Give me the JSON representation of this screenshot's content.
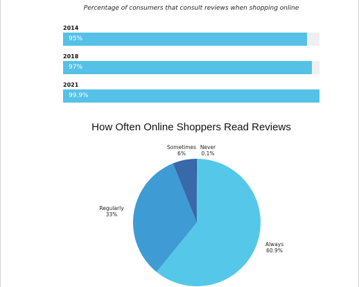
{
  "chart_data": [
    {
      "type": "bar",
      "title": "Percentage of consumers that consult reviews when shopping online",
      "categories": [
        "2014",
        "2018",
        "2021"
      ],
      "values": [
        95,
        97,
        99.9
      ],
      "value_labels": [
        "95%",
        "97%",
        "99.9%"
      ],
      "xlim": [
        0,
        100
      ],
      "orientation": "horizontal",
      "color": "#55c1e7",
      "track_color": "#efefef"
    },
    {
      "type": "pie",
      "title": "How Often Online Shoppers Read Reviews",
      "slices": [
        {
          "name": "Always",
          "value": 60.9,
          "label": "60.9%",
          "color": "#55c8ea"
        },
        {
          "name": "Regularly",
          "value": 33,
          "label": "33%",
          "color": "#3f9bd3"
        },
        {
          "name": "Sometimes",
          "value": 6,
          "label": "6%",
          "color": "#3869a8"
        },
        {
          "name": "Never",
          "value": 0.1,
          "label": "0.1%",
          "color": "#1f3e73"
        }
      ],
      "legend": "none"
    }
  ]
}
